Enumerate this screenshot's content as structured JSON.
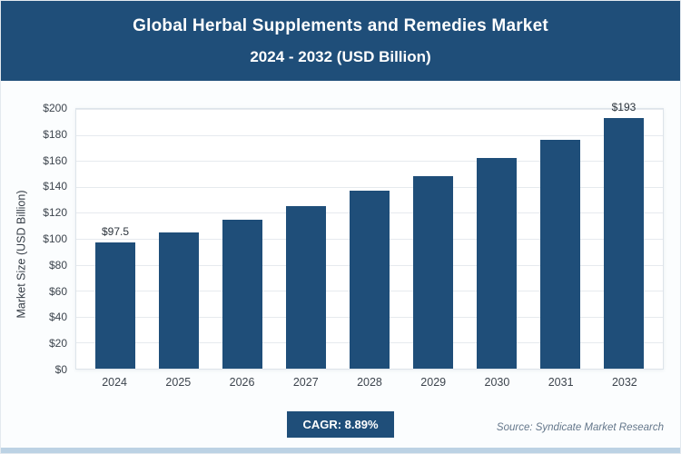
{
  "header": {
    "title_line1": "Global Herbal Supplements and Remedies Market",
    "title_line2": "2024 - 2032 (USD Billion)"
  },
  "chart_data": {
    "type": "bar",
    "title": "Global Herbal Supplements and Remedies Market 2024 - 2032 (USD Billion)",
    "categories": [
      "2024",
      "2025",
      "2026",
      "2027",
      "2028",
      "2029",
      "2030",
      "2031",
      "2032"
    ],
    "values": [
      97.5,
      105,
      115,
      125,
      137,
      148,
      162,
      176,
      193
    ],
    "bar_labels": [
      "$97.5",
      "",
      "",
      "",
      "",
      "",
      "",
      "",
      "$193"
    ],
    "xlabel": "",
    "ylabel": "Market Size (USD Billion)",
    "ylim": [
      0,
      200
    ],
    "ytick_step": 20,
    "ytick_labels": [
      "$0",
      "$20",
      "$40",
      "$60",
      "$80",
      "$100",
      "$120",
      "$140",
      "$160",
      "$180",
      "$200"
    ],
    "grid": true,
    "legend": "none",
    "bar_color": "#1F4E79"
  },
  "footer": {
    "cagr_label": "CAGR: 8.89%",
    "source": "Source: Syndicate Market Research"
  },
  "colors": {
    "header_bg": "#1F4E79",
    "badge_bg": "#1F4E79",
    "bar": "#1F4E79",
    "grid": "#e6eaee"
  }
}
